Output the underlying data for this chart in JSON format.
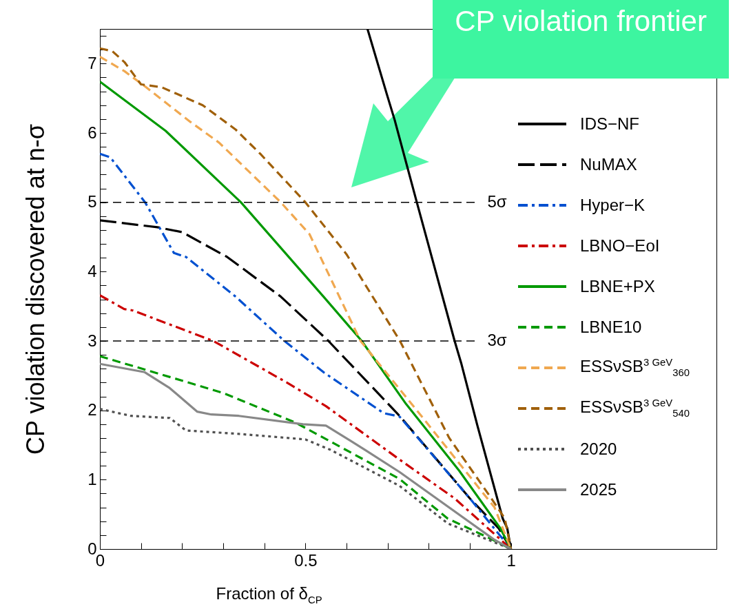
{
  "chart_data": {
    "type": "line",
    "xlabel": "Fraction of δ$_{CP}$",
    "ylabel": "CP violation discovered at n-σ",
    "xlim": [
      0,
      1.5
    ],
    "ylim": [
      0,
      7.5
    ],
    "xticks": [
      0,
      {
        "value": 0.1,
        "label": null
      },
      {
        "value": 0.2,
        "label": null
      },
      {
        "value": 0.3,
        "label": null
      },
      {
        "value": 0.4,
        "label": null
      },
      0.5,
      {
        "value": 0.6,
        "label": null
      },
      {
        "value": 0.7,
        "label": null
      },
      {
        "value": 0.8,
        "label": null
      },
      {
        "value": 0.9,
        "label": null
      },
      1
    ],
    "yticks": [
      0,
      {
        "value": 0.2,
        "label": null
      },
      {
        "value": 0.4,
        "label": null
      },
      {
        "value": 0.6,
        "label": null
      },
      {
        "value": 0.8,
        "label": null
      },
      1,
      {
        "value": 1.2,
        "label": null
      },
      {
        "value": 1.4,
        "label": null
      },
      {
        "value": 1.6,
        "label": null
      },
      {
        "value": 1.8,
        "label": null
      },
      2,
      {
        "value": 2.2,
        "label": null
      },
      {
        "value": 2.4,
        "label": null
      },
      {
        "value": 2.6,
        "label": null
      },
      {
        "value": 2.8,
        "label": null
      },
      3,
      {
        "value": 3.2,
        "label": null
      },
      {
        "value": 3.4,
        "label": null
      },
      {
        "value": 3.6,
        "label": null
      },
      {
        "value": 3.8,
        "label": null
      },
      4,
      {
        "value": 4.2,
        "label": null
      },
      {
        "value": 4.4,
        "label": null
      },
      {
        "value": 4.6,
        "label": null
      },
      {
        "value": 4.8,
        "label": null
      },
      5,
      {
        "value": 5.2,
        "label": null
      },
      {
        "value": 5.4,
        "label": null
      },
      {
        "value": 5.6,
        "label": null
      },
      {
        "value": 5.8,
        "label": null
      },
      6,
      {
        "value": 6.2,
        "label": null
      },
      {
        "value": 6.4,
        "label": null
      },
      {
        "value": 6.6,
        "label": null
      },
      {
        "value": 6.8,
        "label": null
      },
      7,
      {
        "value": 7.2,
        "label": null
      },
      {
        "value": 7.4,
        "label": null
      }
    ],
    "legend": "right",
    "ref_lines": [
      {
        "axis": "y",
        "value": 5,
        "label": "5σ",
        "color": "#000000",
        "line_style": "dashed"
      },
      {
        "axis": "y",
        "value": 3,
        "label": "3σ",
        "color": "#000000",
        "line_style": "dashed"
      }
    ],
    "annotations": [
      "CP violation frontier"
    ],
    "series": [
      {
        "name": "IDS−NF",
        "color": "#000000",
        "line_style": "solid",
        "x": [
          0.651,
          0.698,
          0.717,
          0.771,
          0.863,
          0.879,
          0.918,
          0.98,
          0.991,
          1
        ],
        "values": [
          7.5,
          6.56,
          6.19,
          5.0,
          3.0,
          2.68,
          1.79,
          0.44,
          0.3,
          0
        ]
      },
      {
        "name": "NuMAX",
        "color": "#000000",
        "line_style": "longdash",
        "x": [
          0,
          0.14,
          0.2,
          0.31,
          0.44,
          0.556,
          0.729,
          0.9,
          0.97,
          1
        ],
        "values": [
          4.74,
          4.64,
          4.57,
          4.21,
          3.64,
          3.0,
          1.92,
          0.73,
          0.3,
          0
        ]
      },
      {
        "name": "Hyper−K",
        "color": "#0050d0",
        "line_style": "dashdot",
        "x": [
          0,
          0.025,
          0.11,
          0.18,
          0.21,
          0.33,
          0.449,
          0.544,
          0.69,
          0.729,
          0.9,
          1
        ],
        "values": [
          5.7,
          5.65,
          5.0,
          4.27,
          4.21,
          3.64,
          3.0,
          2.55,
          1.96,
          1.91,
          0.73,
          0
        ]
      },
      {
        "name": "LBNO−EoI",
        "color": "#cc0000",
        "line_style": "dashdot",
        "x": [
          0,
          0.059,
          0.08,
          0.276,
          0.455,
          0.55,
          0.729,
          0.863,
          0.974,
          1
        ],
        "values": [
          3.66,
          3.46,
          3.44,
          3.0,
          2.4,
          2.06,
          1.29,
          0.73,
          0.14,
          0
        ]
      },
      {
        "name": "LBNE+PX",
        "color": "#009900",
        "line_style": "solid",
        "x": [
          0,
          0.16,
          0.343,
          0.544,
          0.637,
          0.745,
          0.874,
          0.974,
          1
        ],
        "values": [
          6.74,
          6.03,
          5.0,
          3.64,
          3.0,
          2.09,
          1.13,
          0.3,
          0
        ]
      },
      {
        "name": "LBNE10",
        "color": "#009900",
        "line_style": "dashed",
        "x": [
          0,
          0.114,
          0.3,
          0.477,
          0.729,
          0.846,
          0.95,
          1
        ],
        "values": [
          2.78,
          2.58,
          2.25,
          1.82,
          1.01,
          0.44,
          0.15,
          0
        ]
      },
      {
        "name": "ESSνSB$^{3 GeV}$$_{360}$",
        "color": "#f0a850",
        "line_style": "dashed",
        "x": [
          0,
          0.06,
          0.11,
          0.22,
          0.29,
          0.44,
          0.51,
          0.634,
          0.79,
          0.96,
          1
        ],
        "values": [
          7.1,
          6.89,
          6.67,
          6.16,
          5.86,
          5.0,
          4.54,
          3.0,
          1.86,
          0.6,
          0
        ]
      },
      {
        "name": "ESSνSB$^{3 GeV}$$_{540}$",
        "color": "#a0600a",
        "line_style": "dashed",
        "x": [
          0,
          0.03,
          0.06,
          0.1,
          0.15,
          0.25,
          0.33,
          0.39,
          0.5,
          0.6,
          0.73,
          0.85,
          0.95,
          0.985,
          1
        ],
        "values": [
          7.22,
          7.18,
          7.02,
          6.7,
          6.66,
          6.4,
          6.05,
          5.7,
          5.0,
          4.25,
          3.0,
          1.6,
          0.75,
          0.44,
          0
        ]
      },
      {
        "name": "2020",
        "color": "#505050",
        "line_style": "dotted",
        "x": [
          0,
          0.075,
          0.17,
          0.209,
          0.338,
          0.5,
          0.561,
          0.729,
          0.846,
          1
        ],
        "values": [
          2.02,
          1.92,
          1.89,
          1.71,
          1.66,
          1.58,
          1.43,
          0.91,
          0.37,
          0
        ]
      },
      {
        "name": "2025",
        "color": "#888888",
        "line_style": "solid",
        "x": [
          0,
          0.109,
          0.17,
          0.237,
          0.271,
          0.338,
          0.494,
          0.55,
          0.645,
          0.729,
          0.958,
          1
        ],
        "values": [
          2.67,
          2.55,
          2.32,
          1.98,
          1.94,
          1.92,
          1.8,
          1.78,
          1.43,
          1.11,
          0.14,
          0
        ]
      }
    ]
  }
}
